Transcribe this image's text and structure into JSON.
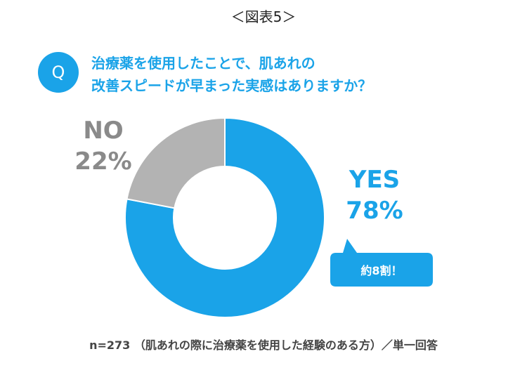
{
  "figure_label": "＜図表5＞",
  "question": {
    "badge": "Q",
    "lines": [
      "治療薬を使用したことで、肌あれの",
      "改善スピードが早まった実感はありますか？"
    ]
  },
  "callout": "約8割！",
  "footnote": "n=273 （肌あれの際に治療薬を使用した経験のある方）／単一回答",
  "colors": {
    "accent": "#1aa3e8",
    "no": "#b3b3b3",
    "no_text": "#8a8a8a"
  },
  "chart_data": {
    "type": "pie",
    "donut": true,
    "title": "",
    "slices": [
      {
        "label": "YES",
        "value": 78,
        "display": "78%",
        "color": "#1aa3e8"
      },
      {
        "label": "NO",
        "value": 22,
        "display": "22%",
        "color": "#b3b3b3"
      }
    ]
  }
}
